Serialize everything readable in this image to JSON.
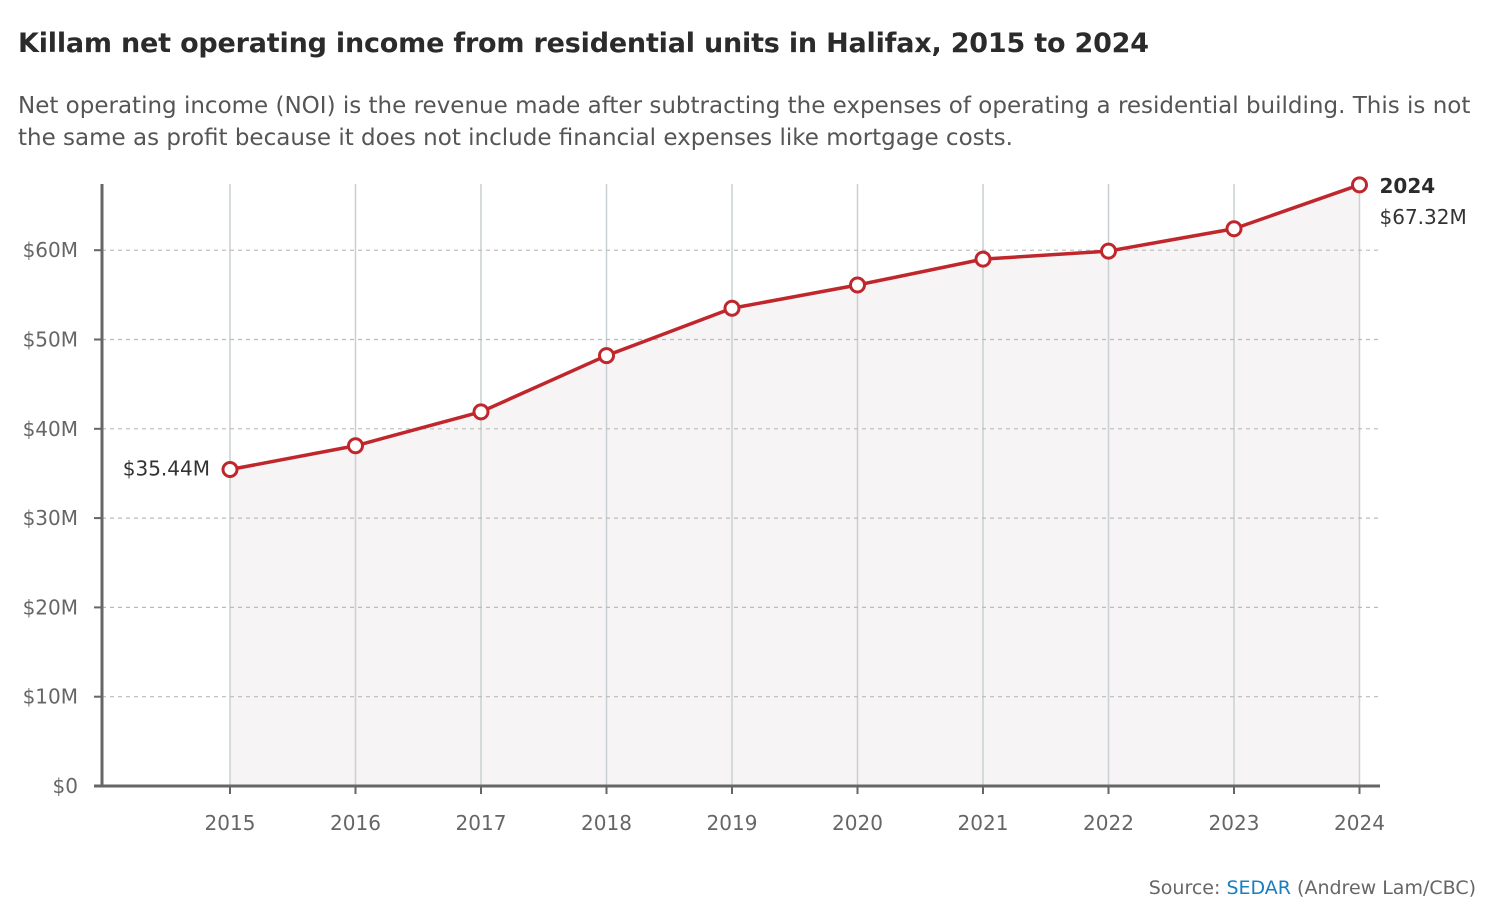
{
  "header": {
    "title": "Killam net operating income from residential units in Halifax, 2015 to 2024",
    "subtitle": "Net operating income (NOI) is the revenue made after subtracting the expenses of operating a residential building. This is not the same as profit because it does not include financial expenses like mortgage costs."
  },
  "footer": {
    "source_prefix": "Source: ",
    "source_link": "SEDAR",
    "source_suffix": " (Andrew Lam/CBC)"
  },
  "colors": {
    "line": "#c0272d",
    "area": "#f7f4f5",
    "grid": "#bbbbbb",
    "vgrid": "#c9d0d4",
    "axis": "#666666",
    "link": "#1a7fbf"
  },
  "chart_data": {
    "type": "line",
    "title": "Killam net operating income from residential units in Halifax, 2015 to 2024",
    "xlabel": "",
    "ylabel": "",
    "categories": [
      "2015",
      "2016",
      "2017",
      "2018",
      "2019",
      "2020",
      "2021",
      "2022",
      "2023",
      "2024"
    ],
    "series": [
      {
        "values": [
          35.44,
          38.1,
          41.9,
          48.2,
          53.5,
          56.1,
          59.0,
          59.9,
          62.4,
          67.32
        ]
      }
    ],
    "ylim": [
      0,
      70
    ],
    "yticks": [
      0,
      10,
      20,
      30,
      40,
      50,
      60
    ],
    "ytick_labels": [
      "$0",
      "$10M",
      "$20M",
      "$30M",
      "$40M",
      "$50M",
      "$60M"
    ],
    "grid": true,
    "area_fill": true,
    "annotations": [
      {
        "index": 0,
        "text": "$35.44M"
      },
      {
        "index": 9,
        "title": "2024",
        "text": "$67.32M"
      }
    ]
  }
}
